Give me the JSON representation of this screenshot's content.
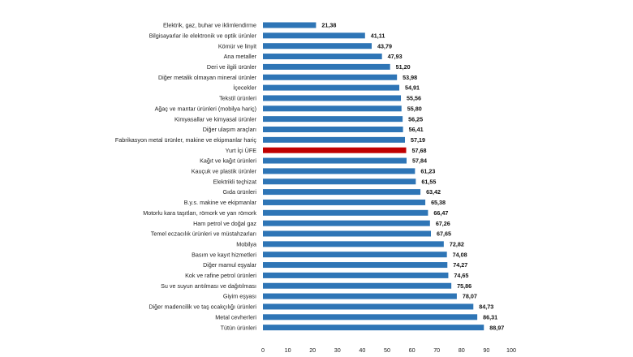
{
  "chart_data": {
    "type": "bar",
    "orientation": "horizontal",
    "categories": [
      "Elektrik, gaz, buhar ve iklimlendirme",
      "Bilgisayarlar ile elektronik ve optik ürünler",
      "Kömür ve linyit",
      "Ana metaller",
      "Deri ve ilgili ürünler",
      "Diğer metalik olmayan mineral ürünler",
      "İçecekler",
      "Tekstil ürünleri",
      "Ağaç ve mantar ürünleri (mobilya hariç)",
      "Kimyasallar ve kimyasal ürünler",
      "Diğer ulaşım araçları",
      "Fabrikasyon metal ürünler, makine ve ekipmanlar hariç",
      "Yurt İçi ÜFE",
      "Kağıt ve kağıt ürünleri",
      "Kauçuk ve plastik ürünler",
      "Elektrikli teçhizat",
      "Gıda ürünleri",
      "B.y.s. makine ve ekipmanlar",
      "Motorlu kara taşıtları, römork ve yarı römork",
      "Ham petrol ve doğal gaz",
      "Temel eczacılık ürünleri ve müstahzarları",
      "Mobilya",
      "Basım ve kayıt hizmetleri",
      "Diğer mamul eşyalar",
      "Kok ve rafine petrol ürünleri",
      "Su ve suyun arıtılması ve dağıtılması",
      "Giyim eşyası",
      "Diğer madencilik ve taş ocakçılığı ürünleri",
      "Metal cevherleri",
      "Tütün ürünleri"
    ],
    "values": [
      21.38,
      41.11,
      43.79,
      47.93,
      51.2,
      53.98,
      54.91,
      55.56,
      55.8,
      56.25,
      56.41,
      57.19,
      57.68,
      57.84,
      61.23,
      61.55,
      63.42,
      65.38,
      66.47,
      67.26,
      67.65,
      72.82,
      74.08,
      74.27,
      74.65,
      75.86,
      78.07,
      84.73,
      86.31,
      88.97
    ],
    "value_labels": [
      "21,38",
      "41,11",
      "43,79",
      "47,93",
      "51,20",
      "53,98",
      "54,91",
      "55,56",
      "55,80",
      "56,25",
      "56,41",
      "57,19",
      "57,68",
      "57,84",
      "61,23",
      "61,55",
      "63,42",
      "65,38",
      "66,47",
      "67,26",
      "67,65",
      "72,82",
      "74,08",
      "74,27",
      "74,65",
      "75,86",
      "78,07",
      "84,73",
      "86,31",
      "88,97"
    ],
    "highlight_category": "Yurt İçi ÜFE",
    "xlim": [
      0,
      100
    ],
    "x_ticks": [
      "0",
      "10",
      "20",
      "30",
      "40",
      "50",
      "60",
      "70",
      "80",
      "90",
      "100"
    ],
    "grid": false,
    "legend": "none",
    "colors": {
      "bar": "#2e75b6",
      "highlight": "#c00000"
    }
  }
}
